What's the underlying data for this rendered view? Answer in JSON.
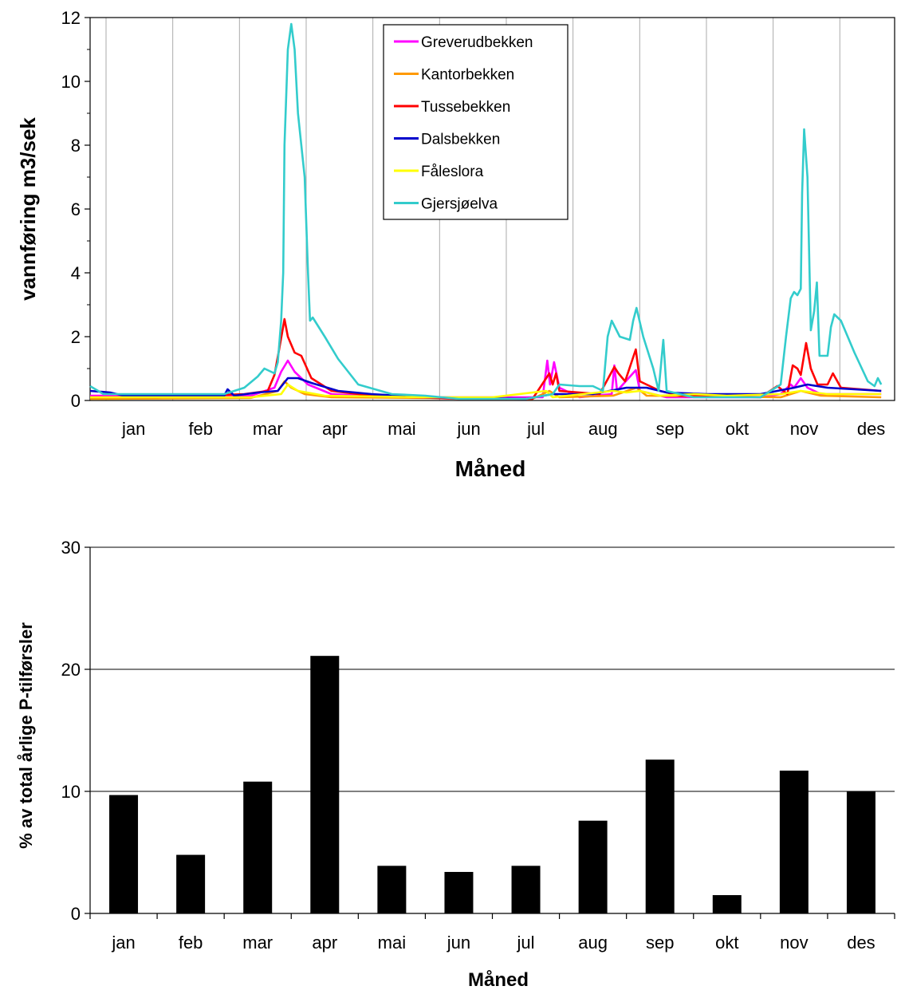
{
  "chart_data": [
    {
      "type": "line",
      "xlabel": "Måned",
      "ylabel": "vannføring m3/sek",
      "ylim": [
        0,
        12
      ],
      "yticks": [
        "0",
        "2",
        "4",
        "6",
        "8",
        "10",
        "12"
      ],
      "months": [
        "jan",
        "feb",
        "mar",
        "apr",
        "mai",
        "jun",
        "jul",
        "aug",
        "sep",
        "okt",
        "nov",
        "des"
      ],
      "grid": "vertical month lines",
      "legend_position": "top-center",
      "series": [
        {
          "name": "Greverudbekken",
          "color": "#ff00ff",
          "points": [
            [
              0,
              0.15
            ],
            [
              2.4,
              0.15
            ],
            [
              2.75,
              0.4
            ],
            [
              2.85,
              0.9
            ],
            [
              2.95,
              1.25
            ],
            [
              3.05,
              0.9
            ],
            [
              3.25,
              0.5
            ],
            [
              3.6,
              0.2
            ],
            [
              4.5,
              0.1
            ],
            [
              6.5,
              0.1
            ],
            [
              6.75,
              0.1
            ],
            [
              6.82,
              1.25
            ],
            [
              6.86,
              0.5
            ],
            [
              6.92,
              1.2
            ],
            [
              7.0,
              0.4
            ],
            [
              7.3,
              0.1
            ],
            [
              7.78,
              0.2
            ],
            [
              7.82,
              1.1
            ],
            [
              7.86,
              0.3
            ],
            [
              8.14,
              0.95
            ],
            [
              8.2,
              0.3
            ],
            [
              8.6,
              0.1
            ],
            [
              10.0,
              0.1
            ],
            [
              10.3,
              0.2
            ],
            [
              10.45,
              0.5
            ],
            [
              10.5,
              0.4
            ],
            [
              10.6,
              0.7
            ],
            [
              10.7,
              0.4
            ],
            [
              10.9,
              0.2
            ],
            [
              11.8,
              0.2
            ]
          ]
        },
        {
          "name": "Kantorbekken",
          "color": "#ff9900",
          "points": [
            [
              0,
              0.05
            ],
            [
              2.4,
              0.08
            ],
            [
              2.8,
              0.3
            ],
            [
              2.9,
              0.6
            ],
            [
              3.0,
              0.4
            ],
            [
              3.2,
              0.2
            ],
            [
              3.6,
              0.1
            ],
            [
              6.6,
              0.05
            ],
            [
              6.85,
              0.3
            ],
            [
              7.0,
              0.1
            ],
            [
              7.8,
              0.15
            ],
            [
              8.15,
              0.4
            ],
            [
              8.3,
              0.15
            ],
            [
              10.3,
              0.1
            ],
            [
              10.6,
              0.3
            ],
            [
              10.9,
              0.15
            ],
            [
              11.8,
              0.1
            ]
          ]
        },
        {
          "name": "Tussebekken",
          "color": "#ff0000",
          "points": [
            [
              0,
              0.1
            ],
            [
              1.0,
              0.1
            ],
            [
              2.3,
              0.2
            ],
            [
              2.65,
              0.3
            ],
            [
              2.75,
              0.8
            ],
            [
              2.82,
              1.6
            ],
            [
              2.9,
              2.55
            ],
            [
              2.95,
              2.0
            ],
            [
              3.05,
              1.5
            ],
            [
              3.15,
              1.4
            ],
            [
              3.3,
              0.7
            ],
            [
              3.6,
              0.3
            ],
            [
              4.2,
              0.15
            ],
            [
              5.5,
              0.05
            ],
            [
              6.6,
              0.05
            ],
            [
              6.85,
              0.85
            ],
            [
              6.9,
              0.5
            ],
            [
              6.95,
              0.85
            ],
            [
              7.0,
              0.3
            ],
            [
              7.6,
              0.2
            ],
            [
              7.82,
              1.05
            ],
            [
              7.88,
              0.85
            ],
            [
              7.98,
              0.6
            ],
            [
              8.14,
              1.6
            ],
            [
              8.2,
              0.6
            ],
            [
              8.5,
              0.3
            ],
            [
              8.8,
              0.15
            ],
            [
              10.0,
              0.1
            ],
            [
              10.25,
              0.45
            ],
            [
              10.4,
              0.2
            ],
            [
              10.48,
              1.1
            ],
            [
              10.55,
              1.0
            ],
            [
              10.6,
              0.8
            ],
            [
              10.68,
              1.8
            ],
            [
              10.75,
              1.0
            ],
            [
              10.85,
              0.5
            ],
            [
              11.0,
              0.5
            ],
            [
              11.08,
              0.85
            ],
            [
              11.2,
              0.4
            ],
            [
              11.8,
              0.3
            ]
          ]
        },
        {
          "name": "Dalsbekken",
          "color": "#0000cc",
          "points": [
            [
              0,
              0.3
            ],
            [
              0.3,
              0.25
            ],
            [
              0.5,
              0.15
            ],
            [
              2.0,
              0.15
            ],
            [
              2.05,
              0.35
            ],
            [
              2.15,
              0.15
            ],
            [
              2.5,
              0.25
            ],
            [
              2.8,
              0.3
            ],
            [
              2.95,
              0.7
            ],
            [
              3.1,
              0.7
            ],
            [
              3.3,
              0.55
            ],
            [
              3.7,
              0.3
            ],
            [
              4.2,
              0.2
            ],
            [
              5.0,
              0.1
            ],
            [
              6.5,
              0.05
            ],
            [
              6.9,
              0.2
            ],
            [
              7.5,
              0.2
            ],
            [
              8.0,
              0.4
            ],
            [
              8.3,
              0.4
            ],
            [
              8.6,
              0.25
            ],
            [
              9.2,
              0.2
            ],
            [
              10.0,
              0.2
            ],
            [
              10.5,
              0.4
            ],
            [
              10.7,
              0.5
            ],
            [
              11.0,
              0.4
            ],
            [
              11.8,
              0.3
            ]
          ]
        },
        {
          "name": "Fåleslora",
          "color": "#ffff00",
          "points": [
            [
              0,
              0.1
            ],
            [
              2.4,
              0.1
            ],
            [
              2.85,
              0.2
            ],
            [
              2.95,
              0.5
            ],
            [
              3.1,
              0.3
            ],
            [
              3.5,
              0.15
            ],
            [
              5.0,
              0.1
            ],
            [
              6.0,
              0.1
            ],
            [
              6.8,
              0.3
            ],
            [
              6.9,
              0.1
            ],
            [
              7.8,
              0.3
            ],
            [
              8.0,
              0.25
            ],
            [
              8.2,
              0.3
            ],
            [
              8.5,
              0.15
            ],
            [
              9.0,
              0.2
            ],
            [
              9.5,
              0.15
            ],
            [
              10.3,
              0.2
            ],
            [
              10.6,
              0.3
            ],
            [
              11.0,
              0.2
            ],
            [
              11.8,
              0.2
            ]
          ]
        },
        {
          "name": "Gjersjøelva",
          "color": "#33cccc",
          "points": [
            [
              0,
              0.45
            ],
            [
              0.2,
              0.2
            ],
            [
              1.0,
              0.2
            ],
            [
              2.0,
              0.2
            ],
            [
              2.3,
              0.4
            ],
            [
              2.5,
              0.75
            ],
            [
              2.6,
              1.0
            ],
            [
              2.75,
              0.85
            ],
            [
              2.8,
              1.2
            ],
            [
              2.85,
              2.5
            ],
            [
              2.88,
              4.0
            ],
            [
              2.9,
              8.0
            ],
            [
              2.95,
              11.0
            ],
            [
              3.0,
              11.8
            ],
            [
              3.05,
              11.0
            ],
            [
              3.1,
              9.0
            ],
            [
              3.2,
              7.0
            ],
            [
              3.25,
              4.0
            ],
            [
              3.28,
              2.5
            ],
            [
              3.32,
              2.6
            ],
            [
              3.5,
              2.0
            ],
            [
              3.7,
              1.3
            ],
            [
              4.0,
              0.5
            ],
            [
              4.5,
              0.2
            ],
            [
              5.0,
              0.15
            ],
            [
              5.5,
              0.05
            ],
            [
              6.5,
              0.05
            ],
            [
              6.9,
              0.2
            ],
            [
              7.0,
              0.5
            ],
            [
              7.3,
              0.45
            ],
            [
              7.5,
              0.45
            ],
            [
              7.65,
              0.3
            ],
            [
              7.72,
              2.0
            ],
            [
              7.78,
              2.5
            ],
            [
              7.9,
              2.0
            ],
            [
              8.05,
              1.9
            ],
            [
              8.1,
              2.5
            ],
            [
              8.15,
              2.9
            ],
            [
              8.25,
              2.0
            ],
            [
              8.4,
              1.0
            ],
            [
              8.48,
              0.3
            ],
            [
              8.55,
              1.9
            ],
            [
              8.6,
              0.3
            ],
            [
              9.0,
              0.1
            ],
            [
              10.0,
              0.1
            ],
            [
              10.3,
              0.5
            ],
            [
              10.38,
              2.0
            ],
            [
              10.45,
              3.2
            ],
            [
              10.5,
              3.4
            ],
            [
              10.55,
              3.3
            ],
            [
              10.6,
              3.5
            ],
            [
              10.62,
              6.5
            ],
            [
              10.65,
              8.5
            ],
            [
              10.7,
              7.0
            ],
            [
              10.75,
              2.2
            ],
            [
              10.8,
              2.8
            ],
            [
              10.84,
              3.7
            ],
            [
              10.88,
              1.4
            ],
            [
              11.0,
              1.4
            ],
            [
              11.05,
              2.3
            ],
            [
              11.1,
              2.7
            ],
            [
              11.2,
              2.5
            ],
            [
              11.4,
              1.5
            ],
            [
              11.6,
              0.6
            ],
            [
              11.7,
              0.45
            ],
            [
              11.75,
              0.7
            ],
            [
              11.8,
              0.5
            ]
          ]
        }
      ]
    },
    {
      "type": "bar",
      "xlabel": "Måned",
      "ylabel": "% av total årlige P-tilførsler",
      "ylim": [
        0,
        30
      ],
      "yticks": [
        "0",
        "10",
        "20",
        "30"
      ],
      "categories": [
        "jan",
        "feb",
        "mar",
        "apr",
        "mai",
        "jun",
        "jul",
        "aug",
        "sep",
        "okt",
        "nov",
        "des"
      ],
      "values": [
        9.7,
        4.8,
        10.8,
        21.1,
        3.9,
        3.4,
        3.9,
        7.6,
        12.6,
        1.5,
        11.7,
        10.0
      ],
      "grid": "horizontal at major ticks",
      "bar_color": "#000000"
    }
  ]
}
